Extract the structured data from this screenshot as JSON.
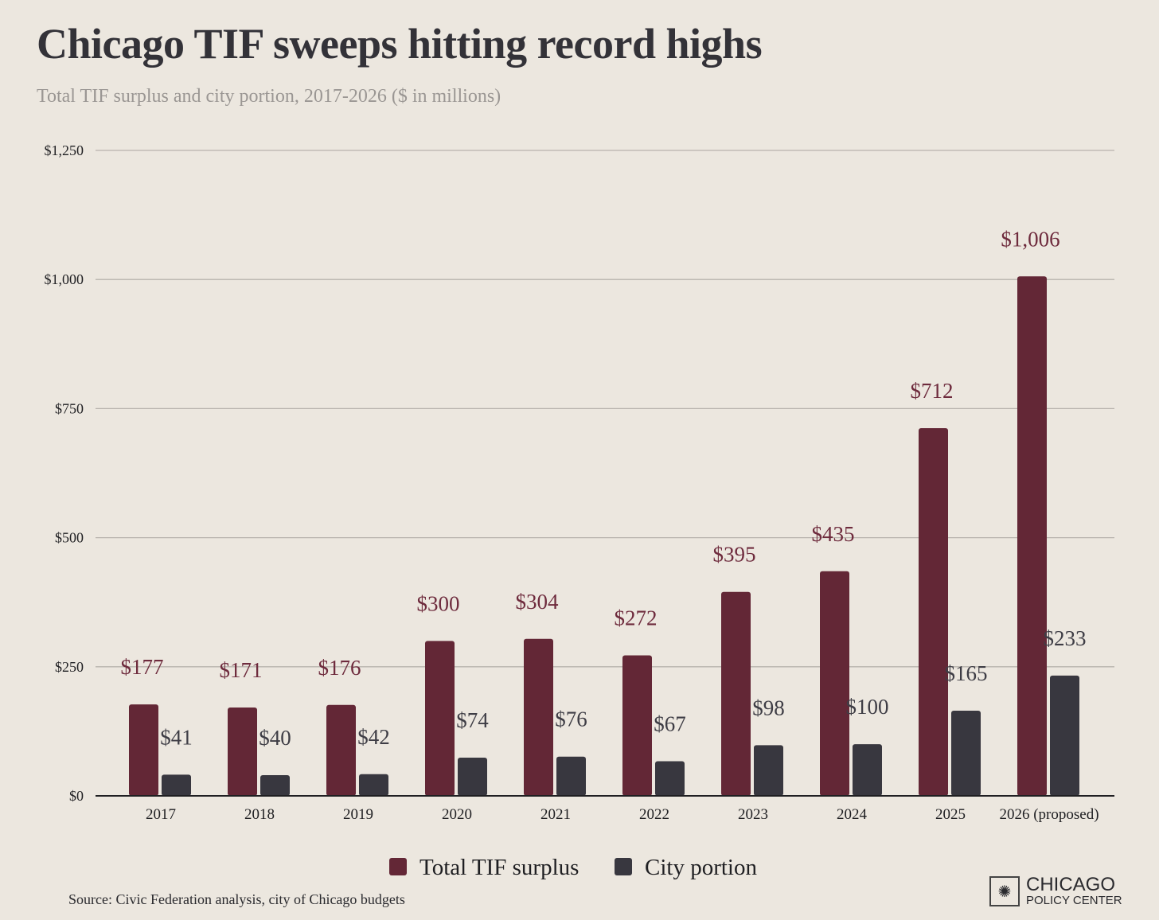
{
  "title": "Chicago TIF sweeps hitting record highs",
  "subtitle": "Total TIF surplus and city portion, 2017-2026 ($ in millions)",
  "source": "Source: Civic Federation analysis, city of Chicago budgets",
  "logo": {
    "line1": "CHICAGO",
    "line2": "POLICY CENTER"
  },
  "chart_data": {
    "type": "bar",
    "title": "Chicago TIF sweeps hitting record highs",
    "categories": [
      "2017",
      "2018",
      "2019",
      "2020",
      "2021",
      "2022",
      "2023",
      "2024",
      "2025",
      "2026 (proposed)"
    ],
    "series": [
      {
        "name": "Total TIF surplus",
        "color": "#632736",
        "values": [
          177,
          171,
          176,
          300,
          304,
          272,
          395,
          435,
          712,
          1006
        ],
        "labels": [
          "$177",
          "$171",
          "$176",
          "$300",
          "$304",
          "$272",
          "$395",
          "$435",
          "$712",
          "$1,006"
        ]
      },
      {
        "name": "City portion",
        "color": "#38373f",
        "values": [
          41,
          40,
          42,
          74,
          76,
          67,
          98,
          100,
          165,
          233
        ],
        "labels": [
          "$41",
          "$40",
          "$42",
          "$74",
          "$76",
          "$67",
          "$98",
          "$100",
          "$165",
          "$233"
        ]
      }
    ],
    "yticks": [
      0,
      250,
      500,
      750,
      1000,
      1250
    ],
    "ytick_labels": [
      "$0",
      "$250",
      "$500",
      "$750",
      "$1,000",
      "$1,250"
    ],
    "ylim": [
      0,
      1250
    ],
    "xlabel": "",
    "ylabel": "",
    "grid": true,
    "legend_position": "bottom-center"
  }
}
